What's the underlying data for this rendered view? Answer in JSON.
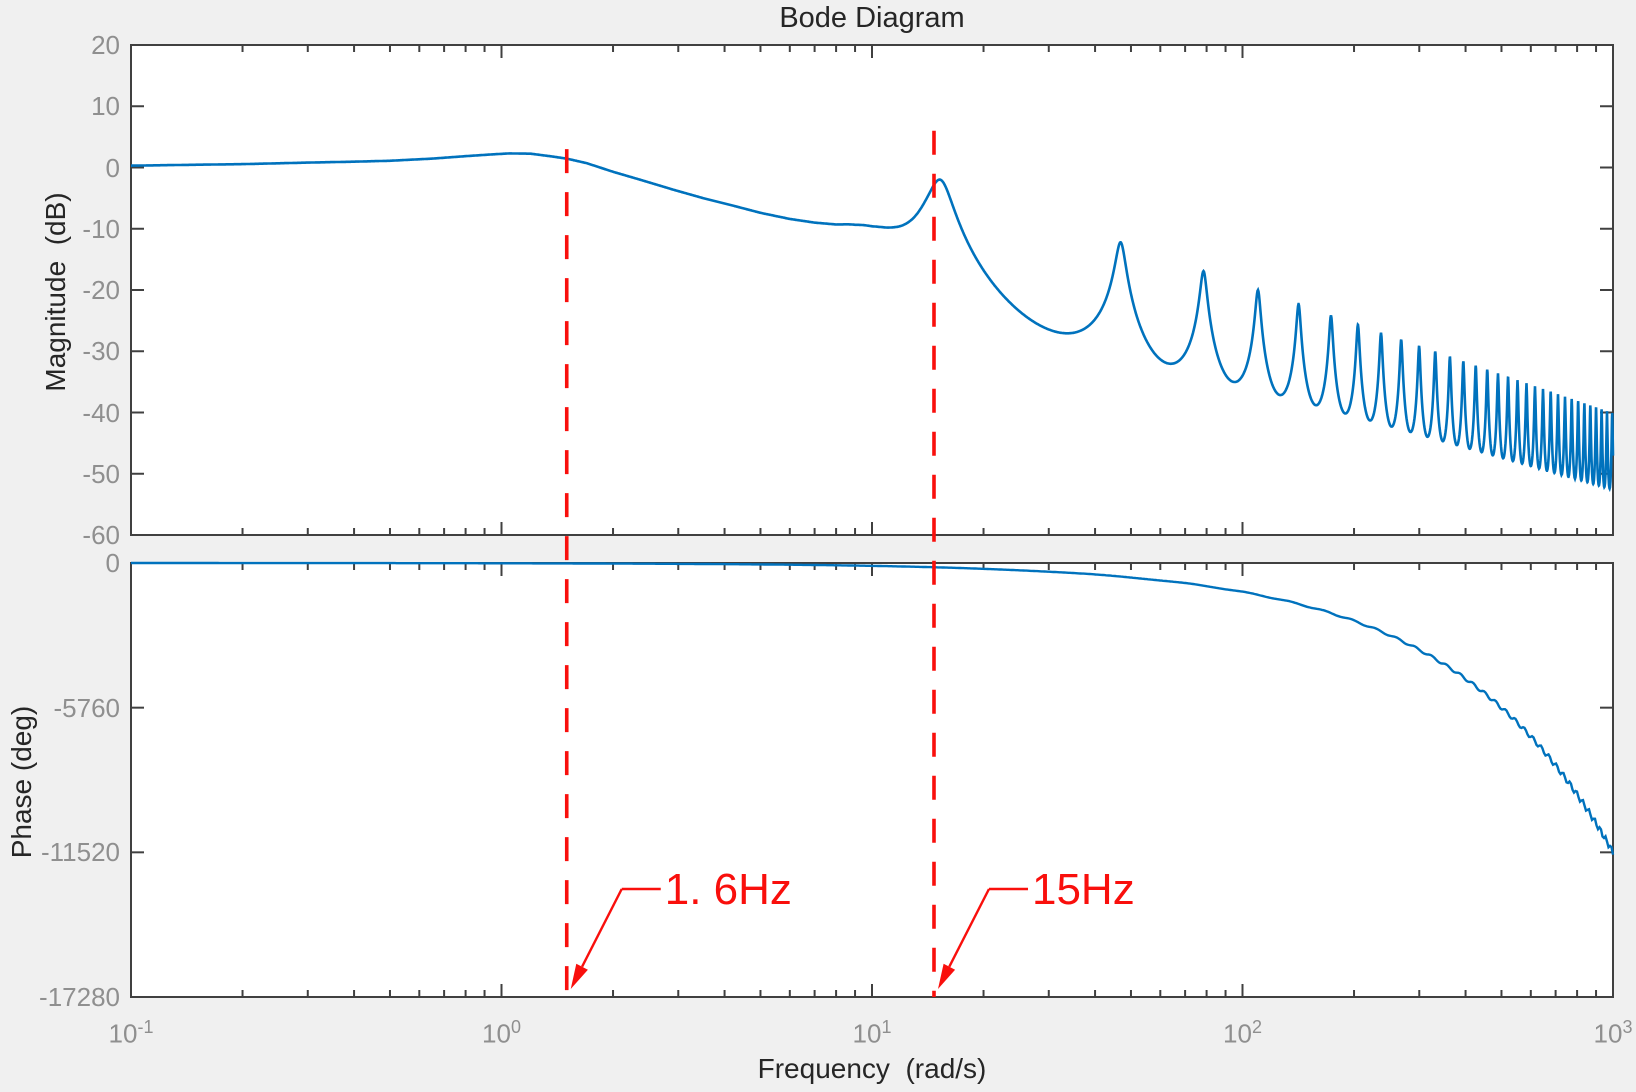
{
  "title": "Bode Diagram",
  "colors": {
    "background": "#f0f0f0",
    "plot_background": "#ffffff",
    "axis": "#404040",
    "tick_labels": "#8f8f8f",
    "text": "#262626",
    "curve": "#0072bd",
    "annotation": "#f90f0c"
  },
  "magnitude_plot": {
    "ylabel": "Magnitude  (dB)",
    "ytick_values": [
      20,
      10,
      0,
      -10,
      -20,
      -30,
      -40,
      -50,
      -60
    ],
    "ylim": [
      -60,
      20
    ]
  },
  "phase_plot": {
    "ylabel": "Phase (deg)",
    "ytick_values": [
      0,
      -5760,
      -11520,
      -17280
    ],
    "ylim": [
      -17280,
      0
    ]
  },
  "xaxis": {
    "label": "Frequency  (rad/s)",
    "scale": "log",
    "xlim": [
      0.1,
      1000
    ],
    "tick_labels": [
      {
        "base": "10",
        "exp": "-1"
      },
      {
        "base": "10",
        "exp": "0"
      },
      {
        "base": "10",
        "exp": "1"
      },
      {
        "base": "10",
        "exp": "2"
      },
      {
        "base": "10",
        "exp": "3"
      }
    ],
    "minor_tick_multiples": [
      2,
      3,
      4,
      5,
      6,
      7,
      8,
      9
    ]
  },
  "annotations": [
    {
      "label": "1. 6Hz",
      "x_radps": 1.5,
      "line_top_db": 3.0
    },
    {
      "label": "15Hz",
      "x_radps": 14.7,
      "line_top_db": 6.0
    }
  ],
  "chart_data": [
    {
      "type": "line",
      "subplot": "magnitude",
      "title": "Bode Diagram",
      "xlabel": "Frequency (rad/s)",
      "ylabel": "Magnitude (dB)",
      "xscale": "log",
      "xlim": [
        0.1,
        1000
      ],
      "ylim": [
        -60,
        20
      ],
      "grid": false,
      "legend": null,
      "low_freq_points": [
        [
          0.1,
          0.3
        ],
        [
          0.15,
          0.45
        ],
        [
          0.2,
          0.55
        ],
        [
          0.3,
          0.8
        ],
        [
          0.4,
          0.95
        ],
        [
          0.5,
          1.1
        ],
        [
          0.65,
          1.45
        ],
        [
          0.8,
          1.85
        ],
        [
          0.95,
          2.15
        ],
        [
          1.05,
          2.3
        ],
        [
          1.2,
          2.25
        ],
        [
          1.35,
          1.85
        ],
        [
          1.5,
          1.45
        ],
        [
          1.7,
          0.7
        ],
        [
          2,
          -0.7
        ],
        [
          2.4,
          -2.1
        ],
        [
          2.9,
          -3.6
        ],
        [
          3.5,
          -5.0
        ],
        [
          4.2,
          -6.2
        ],
        [
          5,
          -7.4
        ],
        [
          6,
          -8.4
        ],
        [
          7,
          -9.0
        ],
        [
          8,
          -9.3
        ],
        [
          9,
          -9.25
        ],
        [
          10,
          -8.8
        ],
        [
          11,
          -8.0
        ],
        [
          12,
          -6.9
        ],
        [
          13,
          -5.5
        ]
      ],
      "resonance_peaks": [
        {
          "w": 15,
          "db": -2.0
        },
        {
          "w": 47,
          "db": -13.1
        },
        {
          "w": 79,
          "db": -17.5
        },
        {
          "w": 110,
          "db": -20.3
        },
        {
          "w": 142,
          "db": -22.4
        },
        {
          "w": 174,
          "db": -24.1
        }
      ],
      "comb": {
        "first_peak_radps": 15.3,
        "first_valley_radps": 31.1,
        "spacing_radps": 31.6,
        "first_peak_db": -2.0,
        "first_valley_db": -26.7,
        "peak_slope_db_per_decade": 21,
        "valley_slope_db_per_decade": 17,
        "blend_range_radps": [
          8.5,
          13.5
        ]
      }
    },
    {
      "type": "line",
      "subplot": "phase",
      "ylabel": "Phase (deg)",
      "ylim": [
        -17280,
        0
      ],
      "yticks": [
        0,
        -5760,
        -11520,
        -17280
      ],
      "endpoints": [
        [
          0.1,
          0
        ],
        [
          1000,
          -11520
        ]
      ],
      "model": {
        "delay_deg_per_radps": 11.52,
        "ripple_period_radps": 31.6,
        "ripple_amp_per_radps": 0.15,
        "ripple_amp_max_deg": 120
      }
    }
  ]
}
